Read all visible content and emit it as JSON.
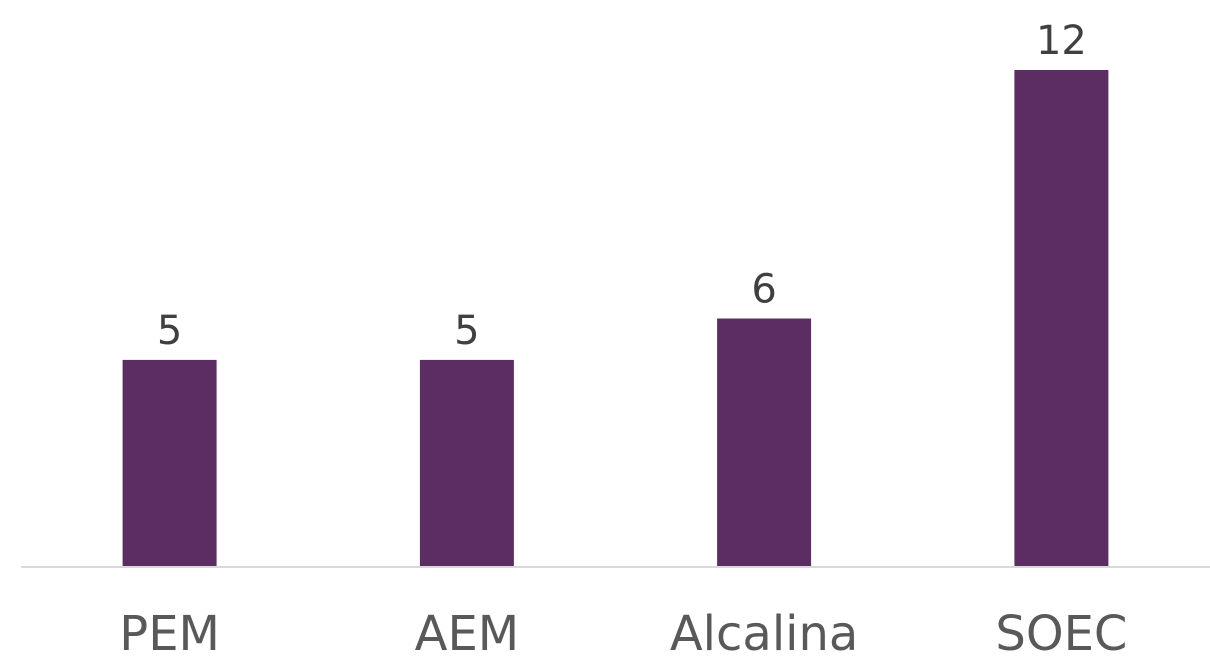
{
  "chart_data": {
    "type": "bar",
    "categories": [
      "PEM",
      "AEM",
      "Alcalina",
      "SOEC"
    ],
    "values": [
      5,
      5,
      6,
      12
    ],
    "title": "",
    "xlabel": "",
    "ylabel": "",
    "ylim": [
      0,
      12
    ],
    "grid": false,
    "legend": "none",
    "data_labels": true,
    "colors": {
      "bar": "#5b2d62",
      "axis": "#d9d9d9",
      "value_text": "#404040",
      "category_text": "#595959"
    }
  }
}
